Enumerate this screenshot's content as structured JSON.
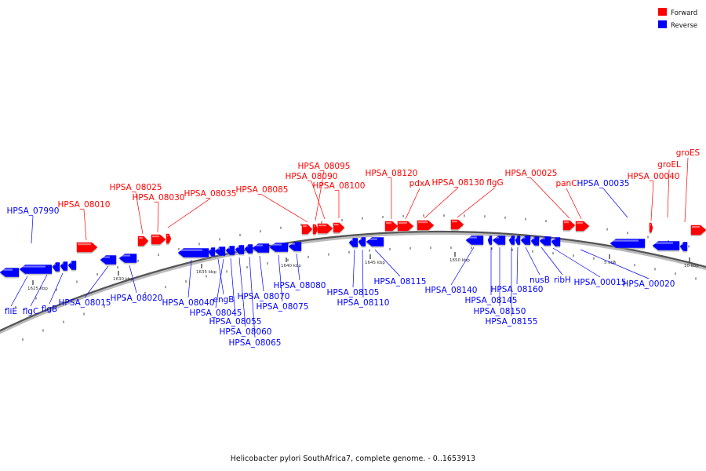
{
  "caption": "Helicobacter pylori SouthAfrica7, complete genome. - 0..1653913",
  "legend": [
    {
      "label": "Forward",
      "color": "#ff0000"
    },
    {
      "label": "Reverse",
      "color": "#0000ff"
    }
  ],
  "ticks": [
    "1625 kbp",
    "1630 kbp",
    "1635 kbp",
    "1640 kbp",
    "1645 kbp",
    "1650 kbp",
    "5 kbp",
    "10 kbp"
  ],
  "forward_genes": [
    "HPSA_08010",
    "HPSA_08025",
    "HPSA_08030",
    "HPSA_08035",
    "HPSA_08085",
    "HPSA_08095",
    "HPSA_08090",
    "HPSA_08100",
    "HPSA_08120",
    "pdxA",
    "HPSA_08130",
    "flgG",
    "HPSA_00025",
    "panC",
    "HPSA_00040",
    "groEL",
    "groES"
  ],
  "reverse_genes": [
    "HPSA_07990",
    "fliE",
    "flgC",
    "flgB",
    "HPSA_08015",
    "HPSA_08020",
    "HPSA_08040",
    "engB",
    "HPSA_08045",
    "HPSA_08055",
    "HPSA_08060",
    "HPSA_08065",
    "HPSA_08070",
    "HPSA_08075",
    "HPSA_08080",
    "HPSA_08105",
    "HPSA_08110",
    "HPSA_08115",
    "HPSA_08140",
    "HPSA_08145",
    "HPSA_08150",
    "HPSA_08155",
    "HPSA_08160",
    "nusB",
    "ribH",
    "HPSA_00015",
    "HPSA_00020",
    "HPSA_00035"
  ]
}
